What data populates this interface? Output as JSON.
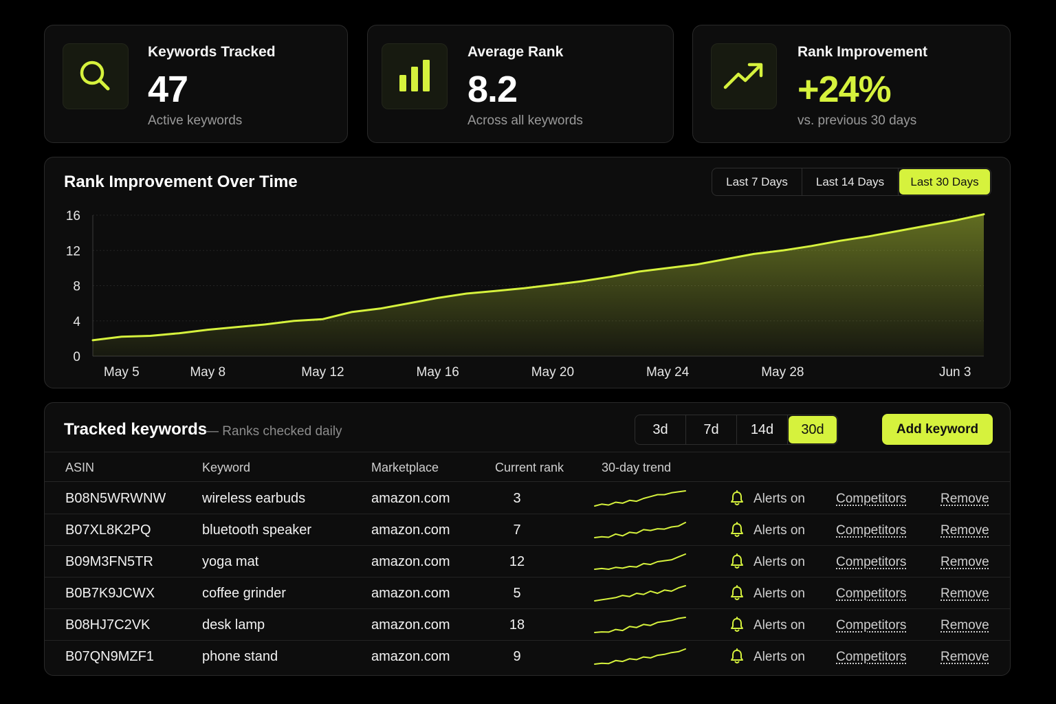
{
  "colors": {
    "accent": "#d6f23d",
    "background": "#000000",
    "card": "#0d0d0d"
  },
  "stats": [
    {
      "icon": "search-icon",
      "title": "Keywords Tracked",
      "value": "47",
      "sub": "Active keywords"
    },
    {
      "icon": "bar-chart-icon",
      "title": "Average Rank",
      "value": "8.2",
      "sub": "Across all keywords"
    },
    {
      "icon": "trending-up-icon",
      "title": "Rank Improvement",
      "value": "+24%",
      "sub": "vs. previous 30 days"
    }
  ],
  "chart": {
    "title": "Rank Improvement Over Time",
    "ranges": [
      "Last 7 Days",
      "Last 14 Days",
      "Last 30 Days"
    ],
    "active_range": "Last 30 Days"
  },
  "chart_data": {
    "type": "area",
    "title": "Rank Improvement Over Time",
    "xlabel": "",
    "ylabel": "",
    "ylim": [
      0,
      16
    ],
    "yticks": [
      "0",
      "4",
      "8",
      "12",
      "16"
    ],
    "xticks": [
      "May 5",
      "May 8",
      "May 12",
      "May 16",
      "May 20",
      "May 24",
      "May 28",
      "Jun 3"
    ],
    "grid": true,
    "x": [
      "May 4",
      "May 5",
      "May 6",
      "May 7",
      "May 8",
      "May 9",
      "May 10",
      "May 11",
      "May 12",
      "May 13",
      "May 14",
      "May 15",
      "May 16",
      "May 17",
      "May 18",
      "May 19",
      "May 20",
      "May 21",
      "May 22",
      "May 23",
      "May 24",
      "May 25",
      "May 26",
      "May 27",
      "May 28",
      "May 29",
      "May 30",
      "May 31",
      "Jun 1",
      "Jun 2",
      "Jun 3",
      "Jun 4"
    ],
    "series": [
      {
        "values": [
          1.8,
          2.2,
          2.3,
          2.6,
          3.0,
          3.3,
          3.6,
          4.0,
          4.2,
          5.0,
          5.4,
          6.0,
          6.6,
          7.1,
          7.4,
          7.7,
          8.1,
          8.5,
          9.0,
          9.6,
          10.0,
          10.4,
          11.0,
          11.6,
          12.0,
          12.5,
          13.1,
          13.6,
          14.2,
          14.8,
          15.4,
          16.1
        ]
      }
    ]
  },
  "table": {
    "title": "Tracked keywords",
    "subtitle": "— Ranks checked daily",
    "periods": [
      "3d",
      "7d",
      "14d",
      "30d"
    ],
    "active_period": "30d",
    "add_label": "Add keyword",
    "columns": [
      "ASIN",
      "Keyword",
      "Marketplace",
      "Current rank",
      "30-day trend"
    ],
    "rows": [
      {
        "asin": "B08N5WRWNW",
        "keyword": "wireless earbuds",
        "marketplace": "amazon.com",
        "rank": "3",
        "trend": [
          2,
          3,
          2.5,
          4,
          3.5,
          5,
          4.5,
          6,
          7,
          8,
          8,
          9,
          9.5,
          10
        ],
        "alerts": "Alerts on",
        "competitors": "Competitors",
        "remove": "Remove"
      },
      {
        "asin": "B07XL8K2PQ",
        "keyword": "bluetooth speaker",
        "marketplace": "amazon.com",
        "rank": "7",
        "trend": [
          2,
          2.5,
          2.2,
          4,
          3,
          5,
          4.5,
          6.5,
          6,
          7,
          6.8,
          8,
          8.5,
          10.5
        ],
        "alerts": "Alerts on",
        "competitors": "Competitors",
        "remove": "Remove"
      },
      {
        "asin": "B09M3FN5TR",
        "keyword": "yoga mat",
        "marketplace": "amazon.com",
        "rank": "12",
        "trend": [
          2,
          2.4,
          2,
          3,
          2.6,
          3.5,
          3.2,
          5,
          4.5,
          6,
          6.5,
          7,
          8.5,
          10
        ],
        "alerts": "Alerts on",
        "competitors": "Competitors",
        "remove": "Remove"
      },
      {
        "asin": "B0B7K9JCWX",
        "keyword": "coffee grinder",
        "marketplace": "amazon.com",
        "rank": "5",
        "trend": [
          2,
          2.5,
          3,
          3.5,
          4.5,
          4,
          5.5,
          5,
          6.5,
          5.5,
          7,
          6.5,
          8,
          9
        ],
        "alerts": "Alerts on",
        "competitors": "Competitors",
        "remove": "Remove"
      },
      {
        "asin": "B08HJ7C2VK",
        "keyword": "desk lamp",
        "marketplace": "amazon.com",
        "rank": "18",
        "trend": [
          2,
          2.3,
          2.2,
          3.5,
          3,
          5,
          4.5,
          6,
          5.5,
          7,
          7.5,
          8,
          9,
          9.5
        ],
        "alerts": "Alerts on",
        "competitors": "Competitors",
        "remove": "Remove"
      },
      {
        "asin": "B07QN9MZF1",
        "keyword": "phone stand",
        "marketplace": "amazon.com",
        "rank": "9",
        "trend": [
          1.5,
          2,
          1.8,
          3.5,
          3,
          4.5,
          4,
          5.5,
          5,
          6.5,
          7,
          8,
          8.5,
          10
        ],
        "alerts": "Alerts on",
        "competitors": "Competitors",
        "remove": "Remove"
      }
    ]
  }
}
